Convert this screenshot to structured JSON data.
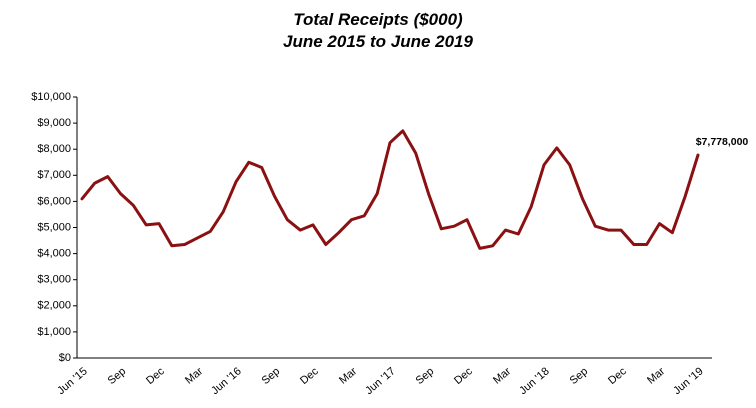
{
  "chart_data": {
    "type": "line",
    "title": "Total Receipts ($000)",
    "subtitle": "June 2015 to June 2019",
    "categories": [
      "Jun '15",
      null,
      null,
      "Sep",
      null,
      null,
      "Dec",
      null,
      null,
      "Mar",
      null,
      null,
      "Jun '16",
      null,
      null,
      "Sep",
      null,
      null,
      "Dec",
      null,
      null,
      "Mar",
      null,
      null,
      "Jun '17",
      null,
      null,
      "Sep",
      null,
      null,
      "Dec",
      null,
      null,
      "Mar",
      null,
      null,
      "Jun '18",
      null,
      null,
      "Sep",
      null,
      null,
      "Dec",
      null,
      null,
      "Mar",
      null,
      null,
      "Jun '19"
    ],
    "series": [
      {
        "name": "Total Receipts",
        "color": "#8b1012",
        "values": [
          6100,
          6700,
          6950,
          6300,
          5850,
          5100,
          5150,
          4300,
          4350,
          4600,
          4850,
          5600,
          6750,
          7500,
          7300,
          6200,
          5300,
          4900,
          5100,
          4350,
          4800,
          5300,
          5450,
          6300,
          8250,
          8700,
          7850,
          6300,
          4950,
          5050,
          5300,
          4200,
          4300,
          4900,
          4750,
          5800,
          7400,
          8050,
          7400,
          6100,
          5050,
          4900,
          4900,
          4350,
          4350,
          5150,
          4800,
          6200,
          7778
        ],
        "value_labels": [
          null,
          null,
          null,
          null,
          null,
          null,
          null,
          null,
          null,
          null,
          null,
          null,
          null,
          null,
          null,
          null,
          null,
          null,
          null,
          null,
          null,
          null,
          null,
          null,
          null,
          null,
          null,
          null,
          null,
          null,
          null,
          null,
          null,
          null,
          null,
          null,
          null,
          null,
          null,
          null,
          null,
          null,
          null,
          null,
          null,
          null,
          null,
          null,
          "$7,778,000"
        ]
      }
    ],
    "ylim": [
      0,
      10000
    ],
    "yticks": [
      {
        "value": 0,
        "label": "$0"
      },
      {
        "value": 1000,
        "label": "$1,000"
      },
      {
        "value": 2000,
        "label": "$2,000"
      },
      {
        "value": 3000,
        "label": "$3,000"
      },
      {
        "value": 4000,
        "label": "$4,000"
      },
      {
        "value": 5000,
        "label": "$5,000"
      },
      {
        "value": 6000,
        "label": "$6,000"
      },
      {
        "value": 7000,
        "label": "$7,000"
      },
      {
        "value": 8000,
        "label": "$8,000"
      },
      {
        "value": 9000,
        "label": "$9,000"
      },
      {
        "value": 10000,
        "label": "$10,000"
      }
    ],
    "grid": false
  }
}
